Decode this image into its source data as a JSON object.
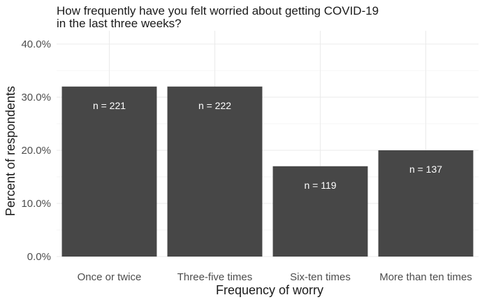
{
  "chart_data": {
    "type": "bar",
    "title_lines": [
      "How frequently have you felt worried about getting COVID-19",
      "in the last three weeks?"
    ],
    "xlabel": "Frequency of worry",
    "ylabel": "Percent of respondents",
    "categories": [
      "Once or twice",
      "Three-five times",
      "Six-ten times",
      "More than ten times"
    ],
    "values": [
      0.32,
      0.32,
      0.17,
      0.2
    ],
    "bar_labels": [
      "n = 221",
      "n = 222",
      "n = 119",
      "n = 137"
    ],
    "ylim": [
      0,
      0.4
    ],
    "yticks": [
      0,
      0.1,
      0.2,
      0.3,
      0.4
    ],
    "ytick_labels": [
      "0.0%",
      "10.0%",
      "20.0%",
      "30.0%",
      "40.0%"
    ],
    "bar_color": "#474747",
    "grid": true
  }
}
